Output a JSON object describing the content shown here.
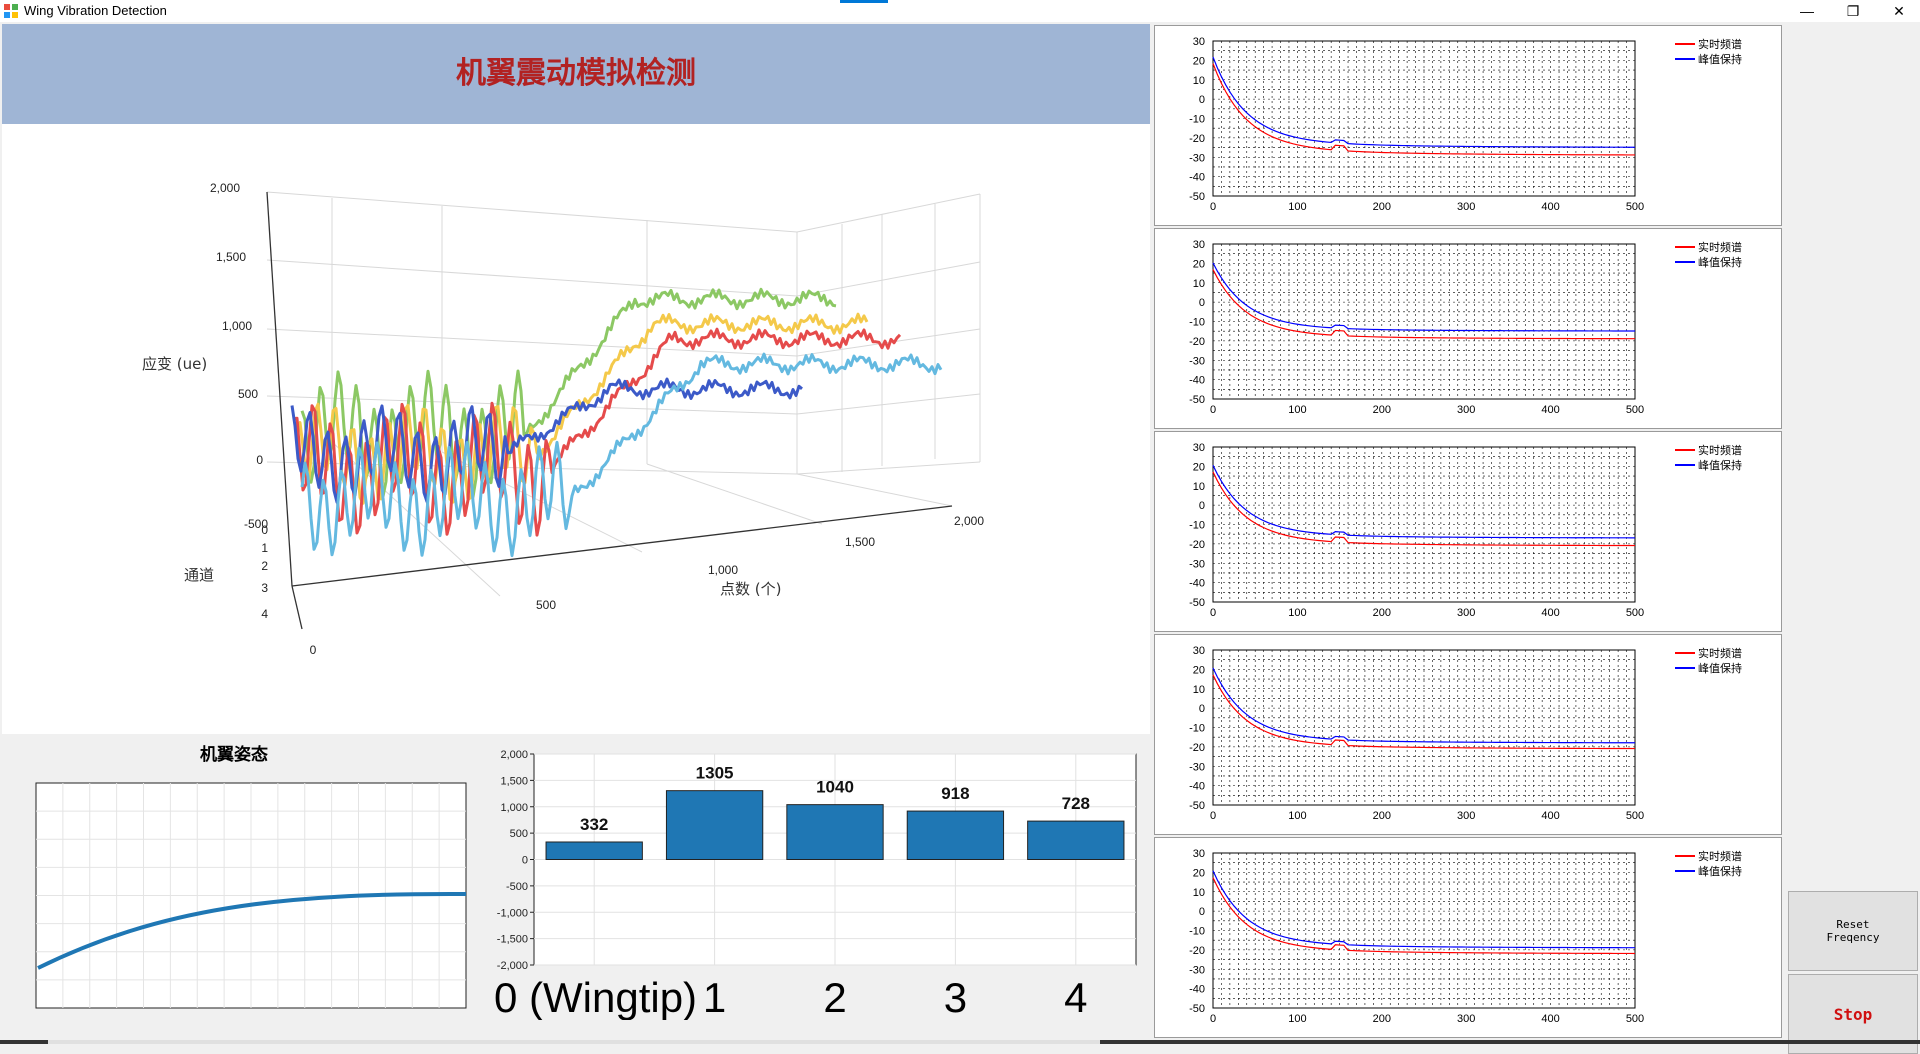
{
  "window": {
    "title": "Wing Vibration Detection",
    "minimize_glyph": "—",
    "restore_glyph": "❐",
    "close_glyph": "✕",
    "icon": "app-icon"
  },
  "header": {
    "heading": "机翼震动模拟检测",
    "background_color": "#9fb5d5",
    "heading_color": "#b22222"
  },
  "surface_chart": {
    "z_label": "应变 (ue)",
    "x_label": "点数 (个)",
    "depth_label": "通道",
    "z_ticks": [
      "2,000",
      "1,500",
      "1,000",
      "500",
      "0",
      "-500"
    ],
    "x_ticks": [
      "0",
      "500",
      "1,000",
      "1,500",
      "2,000"
    ],
    "depth_ticks": [
      "0",
      "1",
      "2",
      "3",
      "4"
    ],
    "series_colors": [
      "#8cc864",
      "#f4c94a",
      "#e54b4b",
      "#3c5ac8",
      "#64b9e0"
    ]
  },
  "attitude": {
    "title": "机翼姿态",
    "curve_color": "#1f77b4"
  },
  "chart_data": [
    {
      "type": "bar",
      "categories": [
        "0 (Wingtip)",
        "1",
        "2",
        "3",
        "4"
      ],
      "values": [
        332,
        1305,
        1040,
        918,
        728
      ],
      "value_labels": [
        "332",
        "1305",
        "1040",
        "918",
        "728"
      ],
      "ylim": [
        -2000,
        2000
      ],
      "y_ticks": [
        "2,000",
        "1,500",
        "1,000",
        "500",
        "0",
        "-500",
        "-1,000",
        "-1,500",
        "-2,000"
      ],
      "bar_color": "#1f77b4",
      "grid": true
    },
    {
      "type": "line",
      "x_ticks": [
        "0",
        "100",
        "200",
        "300",
        "400",
        "500"
      ],
      "y_ticks": [
        "30",
        "20",
        "10",
        "0",
        "-10",
        "-20",
        "-30",
        "-40",
        "-50"
      ],
      "xlim": [
        0,
        500
      ],
      "ylim": [
        -50,
        30
      ],
      "legend": [
        "实时频谱",
        "峰值保持"
      ],
      "legend_colors": [
        "#ff0000",
        "#0000ff"
      ],
      "legend_position": "top-right",
      "panels": [
        {
          "realtime_end": -29,
          "peak_end": -25
        },
        {
          "realtime_end": -19,
          "peak_end": -15
        },
        {
          "realtime_end": -21,
          "peak_end": -17
        },
        {
          "realtime_end": -21,
          "peak_end": -18
        },
        {
          "realtime_end": -22,
          "peak_end": -19
        }
      ]
    }
  ],
  "buttons": {
    "reset_label": "Reset\nFreqency",
    "stop_label": "Stop"
  }
}
